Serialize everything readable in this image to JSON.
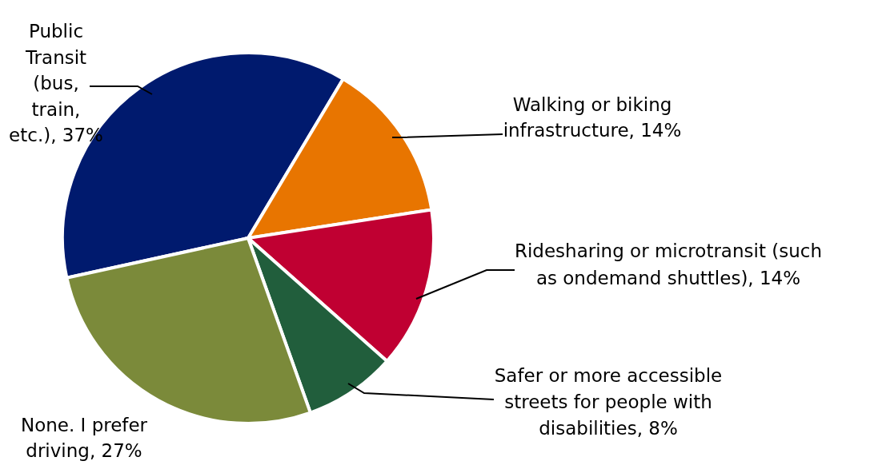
{
  "chart_data": {
    "type": "pie",
    "categories": [
      "Public Transit (bus, train, etc.)",
      "Walking or biking infrastructure",
      "Ridesharing or microtransit (such as ondemand shuttles)",
      "Safer or more accessible streets for people with disabilities",
      "None. I prefer driving"
    ],
    "values": [
      37,
      14,
      14,
      8,
      27
    ],
    "value_labels": [
      "37%",
      "14%",
      "14%",
      "8%",
      "27%"
    ],
    "colors": [
      "#001a6e",
      "#e87500",
      "#c00032",
      "#215e3c",
      "#7b8a3a"
    ]
  }
}
